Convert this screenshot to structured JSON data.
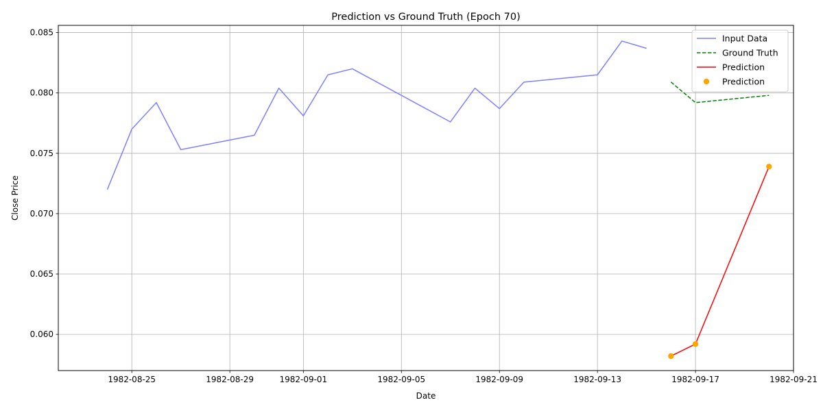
{
  "chart_data": {
    "type": "line",
    "title": "Prediction vs Ground Truth (Epoch 70)",
    "xlabel": "Date",
    "ylabel": "Close Price",
    "xlim": [
      "1982-08-22",
      "1982-09-21"
    ],
    "ylim": [
      0.057,
      0.0856
    ],
    "x_ticks": [
      "1982-08-25",
      "1982-08-29",
      "1982-09-01",
      "1982-09-05",
      "1982-09-09",
      "1982-09-13",
      "1982-09-17",
      "1982-09-21"
    ],
    "y_ticks": [
      0.06,
      0.065,
      0.07,
      0.075,
      0.08,
      0.085
    ],
    "y_tick_labels": [
      "0.060",
      "0.065",
      "0.070",
      "0.075",
      "0.080",
      "0.085"
    ],
    "grid": true,
    "legend_position": "top-right",
    "series": [
      {
        "name": "Input Data",
        "kind": "line",
        "style": "solid",
        "color": "#7f7fff",
        "points": [
          {
            "x": "1982-08-24",
            "y": 0.072
          },
          {
            "x": "1982-08-25",
            "y": 0.077
          },
          {
            "x": "1982-08-26",
            "y": 0.0792
          },
          {
            "x": "1982-08-27",
            "y": 0.0753
          },
          {
            "x": "1982-08-30",
            "y": 0.0765
          },
          {
            "x": "1982-08-31",
            "y": 0.0804
          },
          {
            "x": "1982-09-01",
            "y": 0.0781
          },
          {
            "x": "1982-09-02",
            "y": 0.0815
          },
          {
            "x": "1982-09-03",
            "y": 0.082
          },
          {
            "x": "1982-09-07",
            "y": 0.0776
          },
          {
            "x": "1982-09-08",
            "y": 0.0804
          },
          {
            "x": "1982-09-09",
            "y": 0.0787
          },
          {
            "x": "1982-09-10",
            "y": 0.0809
          },
          {
            "x": "1982-09-13",
            "y": 0.0815
          },
          {
            "x": "1982-09-14",
            "y": 0.0843
          },
          {
            "x": "1982-09-15",
            "y": 0.0837
          }
        ]
      },
      {
        "name": "Ground Truth",
        "kind": "line",
        "style": "dashed",
        "color": "#008000",
        "points": [
          {
            "x": "1982-09-16",
            "y": 0.0809
          },
          {
            "x": "1982-09-17",
            "y": 0.0792
          },
          {
            "x": "1982-09-20",
            "y": 0.0798
          }
        ]
      },
      {
        "name": "Prediction",
        "kind": "line",
        "style": "solid",
        "color": "#ff0000",
        "points": [
          {
            "x": "1982-09-16",
            "y": 0.0582
          },
          {
            "x": "1982-09-17",
            "y": 0.0592
          },
          {
            "x": "1982-09-20",
            "y": 0.0739
          }
        ]
      },
      {
        "name": "Prediction",
        "kind": "scatter",
        "color": "#ffa500",
        "points": [
          {
            "x": "1982-09-16",
            "y": 0.0582
          },
          {
            "x": "1982-09-17",
            "y": 0.0592
          },
          {
            "x": "1982-09-20",
            "y": 0.0739
          }
        ]
      }
    ]
  }
}
